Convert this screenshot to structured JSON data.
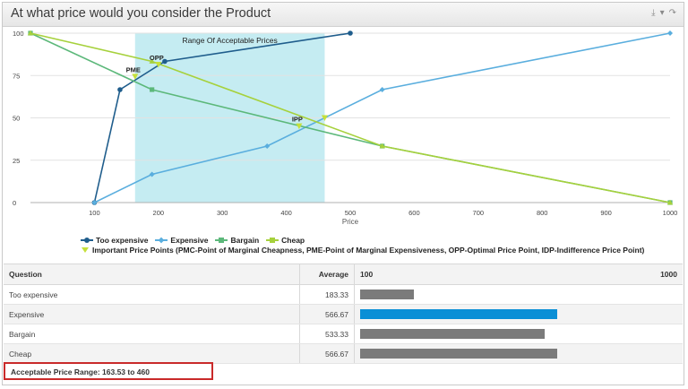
{
  "header": {
    "title": "At what price would you consider the Product"
  },
  "colors": {
    "too_expensive": "#1f5d8c",
    "expensive": "#5aaede",
    "bargain": "#5cb87a",
    "cheap": "#a6d13c",
    "important_points": "#c5e03a",
    "acceptable_band": "#c5ecf2",
    "bar_default": "#7b7b7b",
    "bar_highlight": "#0a8fd6"
  },
  "chart_data": {
    "type": "line",
    "xlabel": "Price",
    "ylabel": "",
    "xlim": [
      0,
      1000
    ],
    "ylim": [
      0,
      100
    ],
    "x_ticks": [
      100,
      200,
      300,
      400,
      500,
      600,
      700,
      800,
      900,
      1000
    ],
    "y_ticks": [
      0,
      25,
      50,
      75,
      100
    ],
    "band": {
      "x0": 163.53,
      "x1": 460,
      "label": "Range Of Acceptable Prices"
    },
    "series": [
      {
        "name": "Too expensive",
        "points": [
          [
            100,
            0
          ],
          [
            140,
            66.67
          ],
          [
            210,
            83.33
          ],
          [
            500,
            100
          ]
        ]
      },
      {
        "name": "Expensive",
        "points": [
          [
            100,
            0
          ],
          [
            190,
            16.67
          ],
          [
            370,
            33.33
          ],
          [
            550,
            66.67
          ],
          [
            1000,
            100
          ]
        ]
      },
      {
        "name": "Bargain",
        "points": [
          [
            0,
            100
          ],
          [
            190,
            66.67
          ],
          [
            550,
            33.33
          ],
          [
            1000,
            0
          ]
        ]
      },
      {
        "name": "Cheap",
        "points": [
          [
            0,
            100
          ],
          [
            190,
            83.33
          ],
          [
            550,
            33.33
          ],
          [
            1000,
            0
          ]
        ]
      }
    ],
    "important_points": {
      "name": "Important Price Points (PMC-Point of Marginal Cheapness, PME-Point of Marginal Expensiveness, OPP-Optimal Price Point, IDP-Indifference Price Point)",
      "points": [
        {
          "label": "PME",
          "x": 163.53,
          "y": 74.4
        },
        {
          "label": "OPP",
          "x": 200,
          "y": 81.5
        },
        {
          "label": "IPP",
          "x": 420,
          "y": 45.2
        },
        {
          "label": "",
          "x": 460,
          "y": 50
        }
      ]
    }
  },
  "legend": {
    "items": [
      "Too expensive",
      "Expensive",
      "Bargain",
      "Cheap"
    ],
    "important": "Important Price Points (PMC-Point of Marginal Cheapness, PME-Point of Marginal Expensiveness, OPP-Optimal Price Point, IDP-Indifference Price Point)"
  },
  "table": {
    "headers": {
      "question": "Question",
      "average": "Average",
      "range_min": "100",
      "range_max": "1000"
    },
    "scale": [
      100,
      1000
    ],
    "rows": [
      {
        "question": "Too expensive",
        "average": "183.33",
        "value": 183.33,
        "highlight": false
      },
      {
        "question": "Expensive",
        "average": "566.67",
        "value": 566.67,
        "highlight": true
      },
      {
        "question": "Bargain",
        "average": "533.33",
        "value": 533.33,
        "highlight": false
      },
      {
        "question": "Cheap",
        "average": "566.67",
        "value": 566.67,
        "highlight": false
      }
    ]
  },
  "footer": {
    "acceptable_range": "Acceptable Price Range: 163.53 to 460"
  }
}
